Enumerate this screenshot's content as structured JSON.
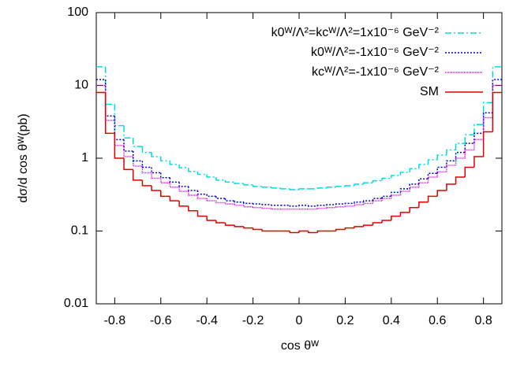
{
  "chart_data": {
    "type": "histogram",
    "xlabel": "cos θᵂ",
    "ylabel": "dσ/d cos θᵂ(pb)",
    "bins": [
      -0.88,
      -0.84,
      -0.8,
      -0.76,
      -0.72,
      -0.68,
      -0.64,
      -0.6,
      -0.56,
      -0.52,
      -0.48,
      -0.44,
      -0.4,
      -0.36,
      -0.32,
      -0.28,
      -0.24,
      -0.2,
      -0.16,
      -0.12,
      -0.08,
      -0.04,
      0,
      0.04,
      0.08,
      0.12,
      0.16,
      0.2,
      0.24,
      0.28,
      0.32,
      0.36,
      0.4,
      0.44,
      0.48,
      0.52,
      0.56,
      0.6,
      0.64,
      0.68,
      0.72,
      0.76,
      0.8,
      0.84,
      0.88
    ],
    "xlim": [
      -0.88,
      0.88
    ],
    "xticks": [
      -0.8,
      -0.6,
      -0.4,
      -0.2,
      0,
      0.2,
      0.4,
      0.6,
      0.8
    ],
    "ylim": [
      0.01,
      100
    ],
    "yticks": [
      0.01,
      0.1,
      1,
      10,
      100
    ],
    "log_y": true,
    "legend": "upper right",
    "series": [
      {
        "name": "k0ᵂ/Λ²=kcᵂ/Λ²=1x10⁻⁶ GeV⁻²",
        "color": "#00dede",
        "dash": "8,3,2,3",
        "values": [
          18,
          5.5,
          2.8,
          1.9,
          1.45,
          1.2,
          1.05,
          0.92,
          0.82,
          0.74,
          0.66,
          0.6,
          0.55,
          0.5,
          0.47,
          0.45,
          0.43,
          0.41,
          0.4,
          0.39,
          0.38,
          0.37,
          0.38,
          0.38,
          0.39,
          0.4,
          0.41,
          0.42,
          0.44,
          0.46,
          0.49,
          0.53,
          0.58,
          0.64,
          0.72,
          0.82,
          0.95,
          1.1,
          1.3,
          1.6,
          2.1,
          2.9,
          5.8,
          18
        ]
      },
      {
        "name": "k0ᵂ/Λ²=-1x10⁻⁶ GeV⁻²",
        "color": "#0000cc",
        "dash": "2,2",
        "values": [
          12,
          3.8,
          1.8,
          1.25,
          0.92,
          0.75,
          0.63,
          0.54,
          0.47,
          0.41,
          0.36,
          0.32,
          0.3,
          0.28,
          0.26,
          0.25,
          0.24,
          0.235,
          0.23,
          0.225,
          0.225,
          0.22,
          0.225,
          0.22,
          0.225,
          0.23,
          0.235,
          0.24,
          0.25,
          0.26,
          0.28,
          0.3,
          0.34,
          0.38,
          0.44,
          0.52,
          0.62,
          0.75,
          0.92,
          1.2,
          1.6,
          2.2,
          4.2,
          12
        ]
      },
      {
        "name": "kcᵂ/Λ²=-1x10⁻⁶ GeV⁻²",
        "color": "#e000e0",
        "dash": "1,1",
        "values": [
          10,
          3.3,
          1.5,
          1.05,
          0.78,
          0.63,
          0.53,
          0.46,
          0.4,
          0.35,
          0.31,
          0.28,
          0.26,
          0.245,
          0.235,
          0.225,
          0.215,
          0.21,
          0.205,
          0.2,
          0.2,
          0.2,
          0.2,
          0.2,
          0.205,
          0.21,
          0.215,
          0.22,
          0.23,
          0.24,
          0.26,
          0.28,
          0.31,
          0.35,
          0.4,
          0.46,
          0.55,
          0.65,
          0.8,
          1.0,
          1.3,
          1.8,
          3.6,
          10
        ]
      },
      {
        "name": "SM",
        "color": "#e00000",
        "dash": "none",
        "values": [
          8,
          2.2,
          1.0,
          0.7,
          0.5,
          0.42,
          0.36,
          0.3,
          0.26,
          0.22,
          0.19,
          0.16,
          0.14,
          0.13,
          0.12,
          0.115,
          0.11,
          0.105,
          0.1,
          0.1,
          0.1,
          0.095,
          0.1,
          0.095,
          0.1,
          0.1,
          0.105,
          0.11,
          0.115,
          0.12,
          0.13,
          0.14,
          0.16,
          0.18,
          0.21,
          0.25,
          0.3,
          0.36,
          0.44,
          0.55,
          0.75,
          1.05,
          2.3,
          8
        ]
      }
    ]
  }
}
